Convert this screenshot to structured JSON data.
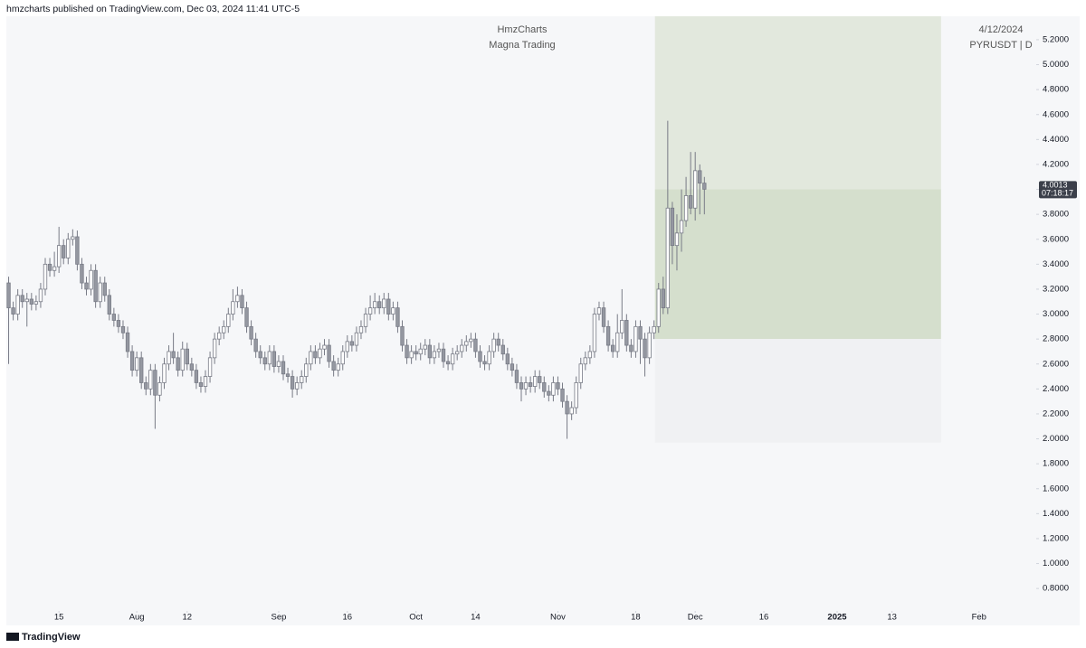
{
  "header": {
    "published": "hmzcharts published on TradingView.com, Dec 03, 2024 11:41 UTC-5",
    "brand": "TradingView"
  },
  "chart_data": {
    "type": "candlestick",
    "title": "HmzCharts",
    "subtitle": "Magna Trading",
    "date": "4/12/2024",
    "symbol": "PYRUSDT | D",
    "countdown": "07:18:17",
    "open": [
      3.25,
      3.05,
      3.0,
      3.15,
      3.1,
      3.12,
      3.08,
      3.1,
      3.2,
      3.4,
      3.35,
      3.38,
      3.55,
      3.45,
      3.6,
      3.62,
      3.4,
      3.25,
      3.2,
      3.35,
      3.1,
      3.25,
      3.15,
      3.0,
      2.95,
      2.9,
      2.85,
      2.7,
      2.55,
      2.65,
      2.45,
      2.4,
      2.55,
      2.35,
      2.45,
      2.6,
      2.7,
      2.65,
      2.55,
      2.72,
      2.6,
      2.55,
      2.45,
      2.42,
      2.5,
      2.65,
      2.8,
      2.85,
      2.9,
      3.0,
      3.1,
      3.15,
      3.05,
      2.9,
      2.8,
      2.7,
      2.65,
      2.6,
      2.7,
      2.58,
      2.62,
      2.52,
      2.5,
      2.4,
      2.45,
      2.5,
      2.6,
      2.7,
      2.65,
      2.72,
      2.75,
      2.62,
      2.55,
      2.6,
      2.7,
      2.78,
      2.75,
      2.85,
      2.9,
      3.0,
      3.05,
      3.1,
      3.05,
      3.12,
      3.0,
      3.05,
      2.9,
      2.75,
      2.65,
      2.7,
      2.68,
      2.72,
      2.75,
      2.65,
      2.7,
      2.72,
      2.62,
      2.6,
      2.68,
      2.7,
      2.75,
      2.78,
      2.8,
      2.7,
      2.62,
      2.6,
      2.7,
      2.8,
      2.75,
      2.68,
      2.6,
      2.55,
      2.45,
      2.4,
      2.45,
      2.42,
      2.5,
      2.45,
      2.38,
      2.35,
      2.45,
      2.4,
      2.3,
      2.2,
      2.25,
      2.45,
      2.6,
      2.65,
      2.7,
      3.0,
      3.05,
      2.9,
      2.75,
      2.7,
      2.85,
      2.95,
      2.75,
      2.7,
      2.9,
      2.8,
      2.65,
      2.85,
      2.9,
      3.2,
      3.05,
      3.85,
      3.55,
      3.65,
      3.75,
      3.95,
      3.85,
      4.15,
      4.05
    ],
    "high": [
      3.3,
      3.1,
      3.2,
      3.2,
      3.17,
      3.17,
      3.15,
      3.25,
      3.45,
      3.45,
      3.5,
      3.7,
      3.6,
      3.65,
      3.68,
      3.67,
      3.45,
      3.3,
      3.4,
      3.4,
      3.3,
      3.3,
      3.2,
      3.05,
      3.0,
      2.95,
      2.9,
      2.75,
      2.7,
      2.7,
      2.5,
      2.6,
      2.6,
      2.5,
      2.65,
      2.75,
      2.85,
      2.7,
      2.78,
      2.77,
      2.65,
      2.6,
      2.5,
      2.55,
      2.7,
      2.85,
      2.9,
      2.95,
      3.05,
      3.2,
      3.22,
      3.2,
      3.1,
      2.95,
      2.85,
      2.75,
      2.7,
      2.75,
      2.75,
      2.67,
      2.67,
      2.57,
      2.55,
      2.5,
      2.55,
      2.65,
      2.75,
      2.75,
      2.77,
      2.8,
      2.8,
      2.67,
      2.65,
      2.75,
      2.83,
      2.83,
      2.9,
      2.95,
      3.05,
      3.15,
      3.17,
      3.15,
      3.17,
      3.17,
      3.1,
      3.1,
      2.95,
      2.8,
      2.75,
      2.75,
      2.77,
      2.8,
      2.8,
      2.75,
      2.77,
      2.77,
      2.67,
      2.73,
      2.75,
      2.8,
      2.83,
      2.85,
      2.85,
      2.75,
      2.67,
      2.75,
      2.85,
      2.85,
      2.8,
      2.73,
      2.65,
      2.6,
      2.5,
      2.5,
      2.5,
      2.55,
      2.55,
      2.5,
      2.43,
      2.5,
      2.5,
      2.45,
      2.35,
      2.3,
      2.5,
      2.65,
      2.7,
      2.75,
      3.05,
      3.1,
      3.1,
      2.95,
      2.8,
      3.0,
      3.2,
      3.0,
      2.8,
      2.95,
      2.95,
      2.85,
      2.9,
      2.95,
      3.25,
      3.3,
      4.55,
      3.9,
      3.8,
      4.0,
      4.1,
      4.3,
      4.3,
      4.2,
      4.1
    ],
    "low": [
      2.6,
      2.95,
      2.95,
      3.05,
      2.9,
      3.03,
      3.03,
      3.05,
      3.15,
      3.3,
      3.3,
      3.33,
      3.4,
      3.4,
      3.55,
      3.35,
      3.2,
      3.15,
      3.15,
      3.05,
      3.05,
      3.1,
      2.95,
      2.9,
      2.85,
      2.8,
      2.65,
      2.5,
      2.5,
      2.4,
      2.35,
      2.35,
      2.08,
      2.3,
      2.4,
      2.55,
      2.6,
      2.5,
      2.5,
      2.55,
      2.5,
      2.4,
      2.37,
      2.37,
      2.45,
      2.6,
      2.75,
      2.8,
      2.85,
      2.95,
      3.05,
      3.0,
      2.85,
      2.75,
      2.65,
      2.6,
      2.55,
      2.55,
      2.53,
      2.53,
      2.47,
      2.45,
      2.33,
      2.35,
      2.4,
      2.45,
      2.55,
      2.6,
      2.6,
      2.67,
      2.57,
      2.5,
      2.5,
      2.55,
      2.65,
      2.7,
      2.7,
      2.8,
      2.85,
      2.95,
      3.0,
      3.0,
      3.0,
      2.95,
      2.95,
      2.85,
      2.7,
      2.6,
      2.6,
      2.63,
      2.63,
      2.67,
      2.6,
      2.6,
      2.65,
      2.57,
      2.55,
      2.55,
      2.63,
      2.65,
      2.7,
      2.73,
      2.65,
      2.57,
      2.55,
      2.55,
      2.65,
      2.7,
      2.63,
      2.55,
      2.5,
      2.4,
      2.3,
      2.35,
      2.37,
      2.37,
      2.4,
      2.33,
      2.3,
      2.3,
      2.35,
      2.25,
      2.0,
      2.15,
      2.2,
      2.4,
      2.55,
      2.6,
      2.65,
      2.95,
      2.85,
      2.7,
      2.65,
      2.65,
      2.8,
      2.7,
      2.65,
      2.65,
      2.6,
      2.5,
      2.6,
      2.8,
      2.85,
      3.0,
      3.0,
      3.4,
      3.35,
      3.5,
      3.7,
      3.8,
      3.75,
      3.8,
      3.8
    ],
    "close": [
      3.05,
      3.0,
      3.15,
      3.1,
      3.12,
      3.08,
      3.1,
      3.2,
      3.4,
      3.35,
      3.38,
      3.55,
      3.45,
      3.6,
      3.62,
      3.4,
      3.25,
      3.2,
      3.35,
      3.1,
      3.25,
      3.15,
      3.0,
      2.95,
      2.9,
      2.85,
      2.7,
      2.55,
      2.65,
      2.45,
      2.4,
      2.55,
      2.35,
      2.45,
      2.6,
      2.7,
      2.65,
      2.55,
      2.72,
      2.6,
      2.55,
      2.45,
      2.42,
      2.5,
      2.65,
      2.8,
      2.85,
      2.9,
      3.0,
      3.1,
      3.15,
      3.05,
      2.9,
      2.8,
      2.7,
      2.65,
      2.6,
      2.7,
      2.58,
      2.62,
      2.52,
      2.5,
      2.4,
      2.45,
      2.5,
      2.6,
      2.7,
      2.65,
      2.72,
      2.75,
      2.62,
      2.55,
      2.6,
      2.7,
      2.78,
      2.75,
      2.85,
      2.9,
      3.0,
      3.05,
      3.1,
      3.05,
      3.12,
      3.0,
      3.05,
      2.9,
      2.75,
      2.65,
      2.7,
      2.68,
      2.72,
      2.75,
      2.65,
      2.7,
      2.72,
      2.62,
      2.6,
      2.68,
      2.7,
      2.75,
      2.78,
      2.8,
      2.7,
      2.62,
      2.6,
      2.7,
      2.8,
      2.75,
      2.68,
      2.6,
      2.55,
      2.45,
      2.4,
      2.45,
      2.42,
      2.5,
      2.45,
      2.38,
      2.35,
      2.45,
      2.4,
      2.3,
      2.2,
      2.25,
      2.45,
      2.6,
      2.65,
      2.7,
      3.0,
      3.05,
      2.9,
      2.75,
      2.7,
      2.85,
      2.95,
      2.75,
      2.7,
      2.9,
      2.8,
      2.65,
      2.85,
      2.9,
      3.2,
      3.05,
      3.85,
      3.55,
      3.65,
      3.75,
      3.95,
      3.85,
      4.15,
      4.05,
      4.0013
    ],
    "up_color": "#ffffff",
    "down_color": "#9598a1",
    "wick_color": "#787b86",
    "zones": [
      {
        "from": 4.0013,
        "to": 5.39,
        "color": "#e2e8dd"
      },
      {
        "from": 2.8,
        "to": 4.0013,
        "color": "#d5dfcd"
      },
      {
        "from": 1.97,
        "to": 2.8,
        "color": "#f0f1f3"
      }
    ],
    "zone_x": [
      141.2,
      203.7
    ],
    "xlim": [
      -0.5,
      224.5
    ],
    "ylim": [
      0.504,
      5.388
    ],
    "xticks": [
      {
        "value": 11,
        "label": "15"
      },
      {
        "value": 28,
        "label": "Aug"
      },
      {
        "value": 39,
        "label": "12"
      },
      {
        "value": 59,
        "label": "Sep"
      },
      {
        "value": 74,
        "label": "16"
      },
      {
        "value": 89,
        "label": "Oct"
      },
      {
        "value": 102,
        "label": "14"
      },
      {
        "value": 120,
        "label": "Nov"
      },
      {
        "value": 137,
        "label": "18"
      },
      {
        "value": 150,
        "label": "Dec"
      },
      {
        "value": 165,
        "label": "16"
      },
      {
        "value": 181,
        "label": "2025"
      },
      {
        "value": 193,
        "label": "13"
      },
      {
        "value": 212,
        "label": "Feb"
      }
    ],
    "yticks": [
      {
        "value": 5.2,
        "label": "5.2000"
      },
      {
        "value": 5.0,
        "label": "5.0000"
      },
      {
        "value": 4.8,
        "label": "4.8000"
      },
      {
        "value": 4.6,
        "label": "4.6000"
      },
      {
        "value": 4.4,
        "label": "4.4000"
      },
      {
        "value": 4.2,
        "label": "4.2000"
      },
      {
        "value": 4.0,
        "label": "4.0000"
      },
      {
        "value": 3.8,
        "label": "3.8000"
      },
      {
        "value": 3.6,
        "label": "3.6000"
      },
      {
        "value": 3.4,
        "label": "3.4000"
      },
      {
        "value": 3.2,
        "label": "3.2000"
      },
      {
        "value": 3.0,
        "label": "3.0000"
      },
      {
        "value": 2.8,
        "label": "2.8000"
      },
      {
        "value": 2.6,
        "label": "2.6000"
      },
      {
        "value": 2.4,
        "label": "2.4000"
      },
      {
        "value": 2.2,
        "label": "2.2000"
      },
      {
        "value": 2.0,
        "label": "2.0000"
      },
      {
        "value": 1.8,
        "label": "1.8000"
      },
      {
        "value": 1.6,
        "label": "1.6000"
      },
      {
        "value": 1.4,
        "label": "1.4000"
      },
      {
        "value": 1.2,
        "label": "1.2000"
      },
      {
        "value": 1.0,
        "label": "1.0000"
      },
      {
        "value": 0.8,
        "label": "0.8000"
      }
    ]
  }
}
